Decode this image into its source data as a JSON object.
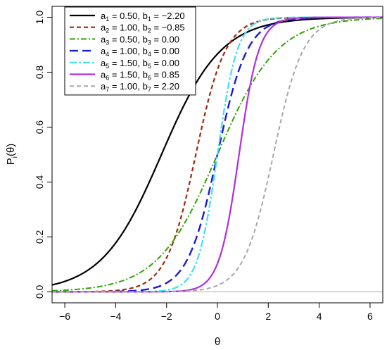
{
  "chart_data": {
    "type": "line",
    "title": "",
    "xlabel": "θ",
    "ylabel_main": "P",
    "ylabel_sub": "i",
    "ylabel_tail": "(θ)",
    "xlim": [
      -6.5,
      6.5
    ],
    "ylim": [
      -0.04,
      1.04
    ],
    "x_ticks": [
      -6,
      -4,
      -2,
      0,
      2,
      4,
      6
    ],
    "y_ticks": [
      0.0,
      0.2,
      0.4,
      0.6,
      0.8,
      1.0
    ],
    "x_tick_labels": [
      "−6",
      "−4",
      "−2",
      "0",
      "2",
      "4",
      "6"
    ],
    "y_tick_labels": [
      "0.0",
      "0.2",
      "0.4",
      "0.6",
      "0.8",
      "1.0"
    ],
    "grid": false,
    "legend_position": "top-left",
    "model": "logistic: P(θ) = 1 / (1 + exp(−1.7·a·(θ − b)))",
    "baseline": {
      "y": 0,
      "color": "#bebebe"
    },
    "series": [
      {
        "a_label": "a",
        "idx": "1",
        "b_label": "b",
        "a_value": "0.50",
        "b_value": "−2.20",
        "a": 0.5,
        "b": -2.2,
        "color": "#000000",
        "dash": "",
        "width": 2.2
      },
      {
        "a_label": "a",
        "idx": "2",
        "b_label": "b",
        "a_value": "1.00",
        "b_value": "−0.85",
        "a": 1.0,
        "b": -0.85,
        "color": "#a0290a",
        "dash": "6,4",
        "width": 2.2
      },
      {
        "a_label": "a",
        "idx": "3",
        "b_label": "b",
        "a_value": "0.50",
        "b_value": "0.00",
        "a": 0.5,
        "b": 0.0,
        "color": "#33a300",
        "dash": "8,3,2,3",
        "width": 2.0
      },
      {
        "a_label": "a",
        "idx": "4",
        "b_label": "b",
        "a_value": "1.00",
        "b_value": "0.00",
        "a": 1.0,
        "b": 0.0,
        "color": "#1a1ad6",
        "dash": "12,6",
        "width": 2.4
      },
      {
        "a_label": "a",
        "idx": "5",
        "b_label": "b",
        "a_value": "1.50",
        "b_value": "0.00",
        "a": 1.5,
        "b": 0.0,
        "color": "#3ee0f0",
        "dash": "10,3,3,3",
        "width": 2.2
      },
      {
        "a_label": "a",
        "idx": "6",
        "b_label": "b",
        "a_value": "1.50",
        "b_value": "0.85",
        "a": 1.5,
        "b": 0.85,
        "color": "#b02ee0",
        "dash": "",
        "width": 2.2
      },
      {
        "a_label": "a",
        "idx": "7",
        "b_label": "b",
        "a_value": "1.00",
        "b_value": "2.20",
        "a": 1.0,
        "b": 2.2,
        "color": "#a8a8a8",
        "dash": "6,4",
        "width": 2.0
      }
    ]
  }
}
